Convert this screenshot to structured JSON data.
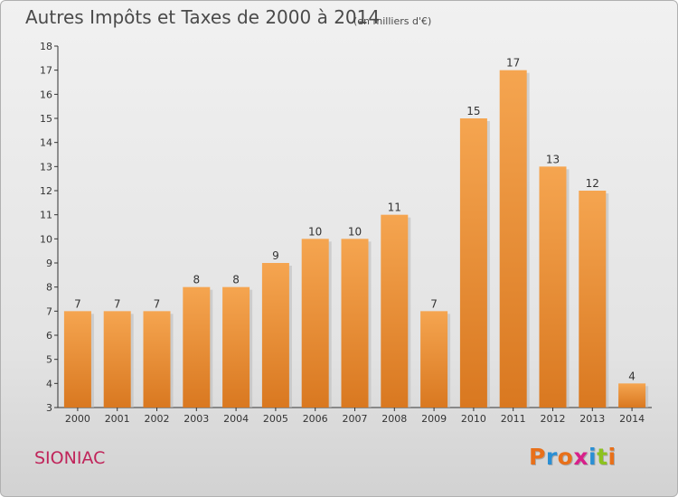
{
  "chart_data": {
    "type": "bar",
    "title": "Autres Impôts et Taxes de 2000 à 2014",
    "unit_note": "(en milliers d'€)",
    "categories": [
      "2000",
      "2001",
      "2002",
      "2003",
      "2004",
      "2005",
      "2006",
      "2007",
      "2008",
      "2009",
      "2010",
      "2011",
      "2012",
      "2013",
      "2014"
    ],
    "values": [
      7,
      7,
      7,
      8,
      8,
      9,
      10,
      10,
      11,
      7,
      15,
      17,
      13,
      12,
      4
    ],
    "ylim": [
      3,
      18
    ],
    "yticks": [
      3,
      4,
      5,
      6,
      7,
      8,
      9,
      10,
      11,
      12,
      13,
      14,
      15,
      16,
      17,
      18
    ],
    "bar_color_top": "#f5a550",
    "bar_color_bottom": "#d97820",
    "grid": false,
    "legend": "none"
  },
  "footer": {
    "town": "SIONIAC",
    "logo": [
      "P",
      "r",
      "o",
      "x",
      "i",
      "t",
      "i"
    ],
    "logo_colors": [
      "#e8701a",
      "#2a8fd4",
      "#e8701a",
      "#d8208a",
      "#2a8fd4",
      "#8dc21f",
      "#e8701a"
    ]
  }
}
